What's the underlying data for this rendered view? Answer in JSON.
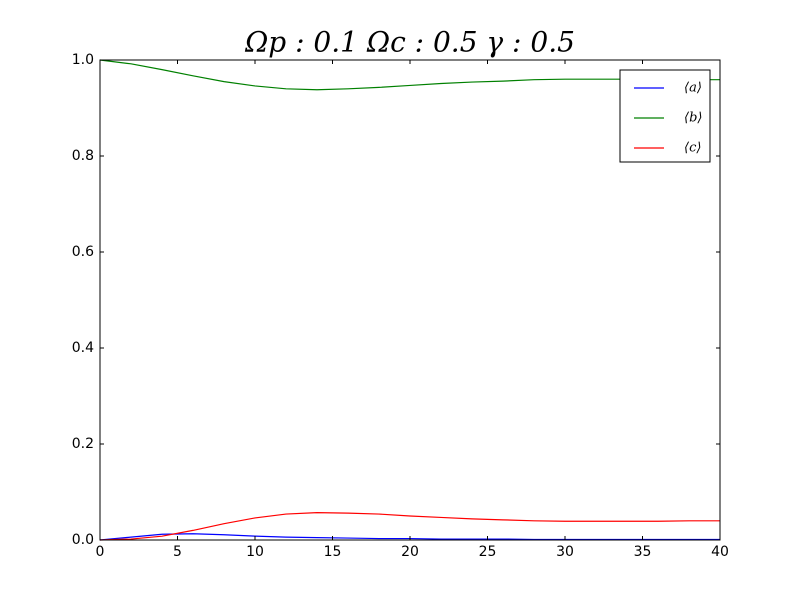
{
  "chart_data": {
    "type": "line",
    "title": "Ωp : 0.1   Ωc : 0.5   γ : 0.5",
    "x": [
      0,
      2,
      4,
      6,
      8,
      10,
      12,
      14,
      16,
      18,
      20,
      22,
      24,
      26,
      28,
      30,
      32,
      34,
      36,
      38,
      40
    ],
    "series": [
      {
        "name": "⟨a⟩",
        "color": "#0000ff",
        "values": [
          0,
          0.006,
          0.012,
          0.013,
          0.011,
          0.008,
          0.006,
          0.005,
          0.004,
          0.003,
          0.003,
          0.002,
          0.002,
          0.002,
          0.001,
          0.001,
          0.001,
          0.001,
          0.001,
          0.001,
          0.001
        ]
      },
      {
        "name": "⟨b⟩",
        "color": "#008000",
        "values": [
          1,
          0.992,
          0.98,
          0.967,
          0.955,
          0.946,
          0.94,
          0.938,
          0.94,
          0.943,
          0.947,
          0.951,
          0.954,
          0.956,
          0.959,
          0.96,
          0.96,
          0.96,
          0.96,
          0.959,
          0.959
        ]
      },
      {
        "name": "⟨c⟩",
        "color": "#ff0000",
        "values": [
          0,
          0.002,
          0.008,
          0.02,
          0.034,
          0.046,
          0.054,
          0.057,
          0.056,
          0.054,
          0.05,
          0.047,
          0.044,
          0.042,
          0.04,
          0.039,
          0.039,
          0.039,
          0.039,
          0.04,
          0.04
        ]
      }
    ],
    "xlim": [
      0,
      40
    ],
    "xticks": [
      0,
      5,
      10,
      15,
      20,
      25,
      30,
      35,
      40
    ],
    "ylim": [
      0,
      1
    ],
    "yticks": [
      {
        "value": 0,
        "label": "0.0"
      },
      0.2,
      0.4,
      0.6,
      0.8,
      {
        "value": 1,
        "label": "1.0"
      }
    ],
    "legend": "upper right"
  }
}
